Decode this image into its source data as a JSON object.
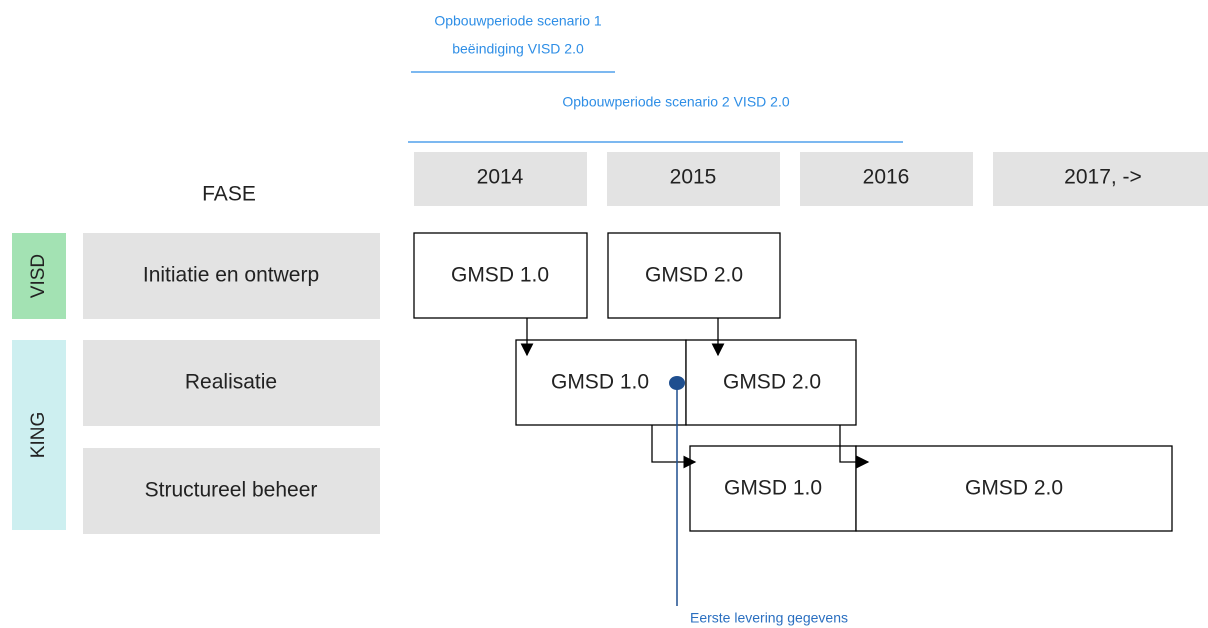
{
  "annotations": {
    "scenario_1": [
      "Opbouwperiode scenario 1",
      "beëindiging VISD 2.0"
    ],
    "scenario_2": "Opbouwperiode scenario 2 VISD 2.0",
    "milestone": "Eerste levering gegevens"
  },
  "header": {
    "fase": "FASE",
    "years": [
      "2014",
      "2015",
      "2016",
      "2017, ->"
    ]
  },
  "groups": [
    "VISD",
    "KING"
  ],
  "phases": [
    "Initiatie en ontwerp",
    "Realisatie",
    "Structureel beheer"
  ],
  "rows": [
    [
      "GMSD 1.0",
      "GMSD 2.0"
    ],
    [
      "GMSD 1.0",
      "GMSD 2.0"
    ],
    [
      "GMSD 1.0",
      "GMSD 2.0"
    ]
  ]
}
